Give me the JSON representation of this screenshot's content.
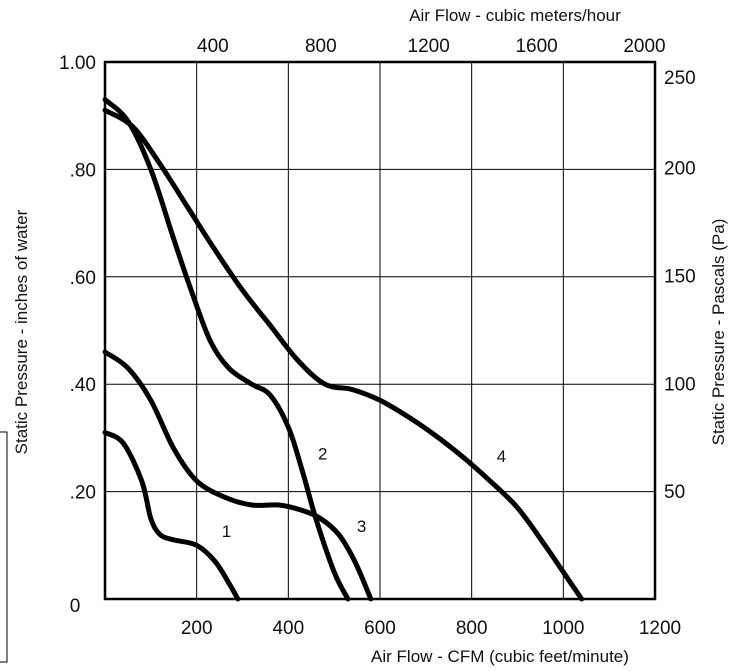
{
  "chart_data": {
    "type": "line",
    "title": "",
    "xlabel": "Air Flow - CFM (cubic feet/minute)",
    "ylabel": "Static Pressure - inches of water",
    "x2label": "Air Flow - cubic meters/hour",
    "y2label": "Static Pressure - Pascals (Pa)",
    "xlim": [
      0,
      1200
    ],
    "ylim": [
      0,
      1.0
    ],
    "grid": true,
    "x_ticks": [
      {
        "value": 0,
        "label": "0"
      },
      {
        "value": 200,
        "label": "200"
      },
      {
        "value": 400,
        "label": "400"
      },
      {
        "value": 600,
        "label": "600"
      },
      {
        "value": 800,
        "label": "800"
      },
      {
        "value": 1000,
        "label": "1000"
      },
      {
        "value": 1200,
        "label": "1200"
      }
    ],
    "y_ticks": [
      {
        "value": 0.2,
        "label": ".20"
      },
      {
        "value": 0.4,
        "label": ".40"
      },
      {
        "value": 0.6,
        "label": ".60"
      },
      {
        "value": 0.8,
        "label": ".80"
      },
      {
        "value": 1.0,
        "label": "1.00"
      }
    ],
    "x2_ticks": [
      {
        "value": 400,
        "label": "400"
      },
      {
        "value": 800,
        "label": "800"
      },
      {
        "value": 1200,
        "label": "1200"
      },
      {
        "value": 1600,
        "label": "1600"
      },
      {
        "value": 2000,
        "label": "2000"
      }
    ],
    "x2_range": [
      0,
      2039
    ],
    "y2_ticks": [
      {
        "value": 50,
        "label": "50"
      },
      {
        "value": 100,
        "label": "100"
      },
      {
        "value": 150,
        "label": "150"
      },
      {
        "value": 200,
        "label": "200"
      },
      {
        "value": 250,
        "label": "250"
      }
    ],
    "y2_range": [
      0,
      249
    ],
    "series": [
      {
        "name": "1",
        "x": [
          0,
          40,
          80,
          100,
          120,
          150,
          200,
          240,
          270,
          290
        ],
        "y": [
          0.31,
          0.29,
          0.22,
          0.15,
          0.12,
          0.11,
          0.1,
          0.07,
          0.03,
          0.0
        ]
      },
      {
        "name": "2",
        "x": [
          0,
          50,
          100,
          150,
          190,
          230,
          270,
          320,
          360,
          400,
          430,
          460,
          500,
          530
        ],
        "y": [
          0.93,
          0.89,
          0.8,
          0.67,
          0.57,
          0.48,
          0.43,
          0.4,
          0.38,
          0.32,
          0.24,
          0.15,
          0.05,
          0.0
        ]
      },
      {
        "name": "3",
        "x": [
          0,
          50,
          100,
          150,
          200,
          260,
          320,
          380,
          430,
          470,
          510,
          545,
          580
        ],
        "y": [
          0.46,
          0.43,
          0.37,
          0.28,
          0.22,
          0.19,
          0.175,
          0.175,
          0.165,
          0.15,
          0.12,
          0.07,
          0.0
        ]
      },
      {
        "name": "4",
        "x": [
          0,
          60,
          120,
          180,
          240,
          300,
          360,
          420,
          480,
          540,
          600,
          660,
          720,
          780,
          840,
          900,
          960,
          1000,
          1040
        ],
        "y": [
          0.91,
          0.88,
          0.81,
          0.73,
          0.65,
          0.575,
          0.51,
          0.445,
          0.4,
          0.39,
          0.37,
          0.34,
          0.305,
          0.265,
          0.22,
          0.17,
          0.1,
          0.05,
          0.0
        ]
      }
    ],
    "curve_labels": [
      {
        "series": "1",
        "text": "1",
        "x": 265,
        "y": 0.115
      },
      {
        "series": "2",
        "text": "2",
        "x": 475,
        "y": 0.26
      },
      {
        "series": "3",
        "text": "3",
        "x": 560,
        "y": 0.125
      },
      {
        "series": "4",
        "text": "4",
        "x": 865,
        "y": 0.255
      }
    ]
  }
}
